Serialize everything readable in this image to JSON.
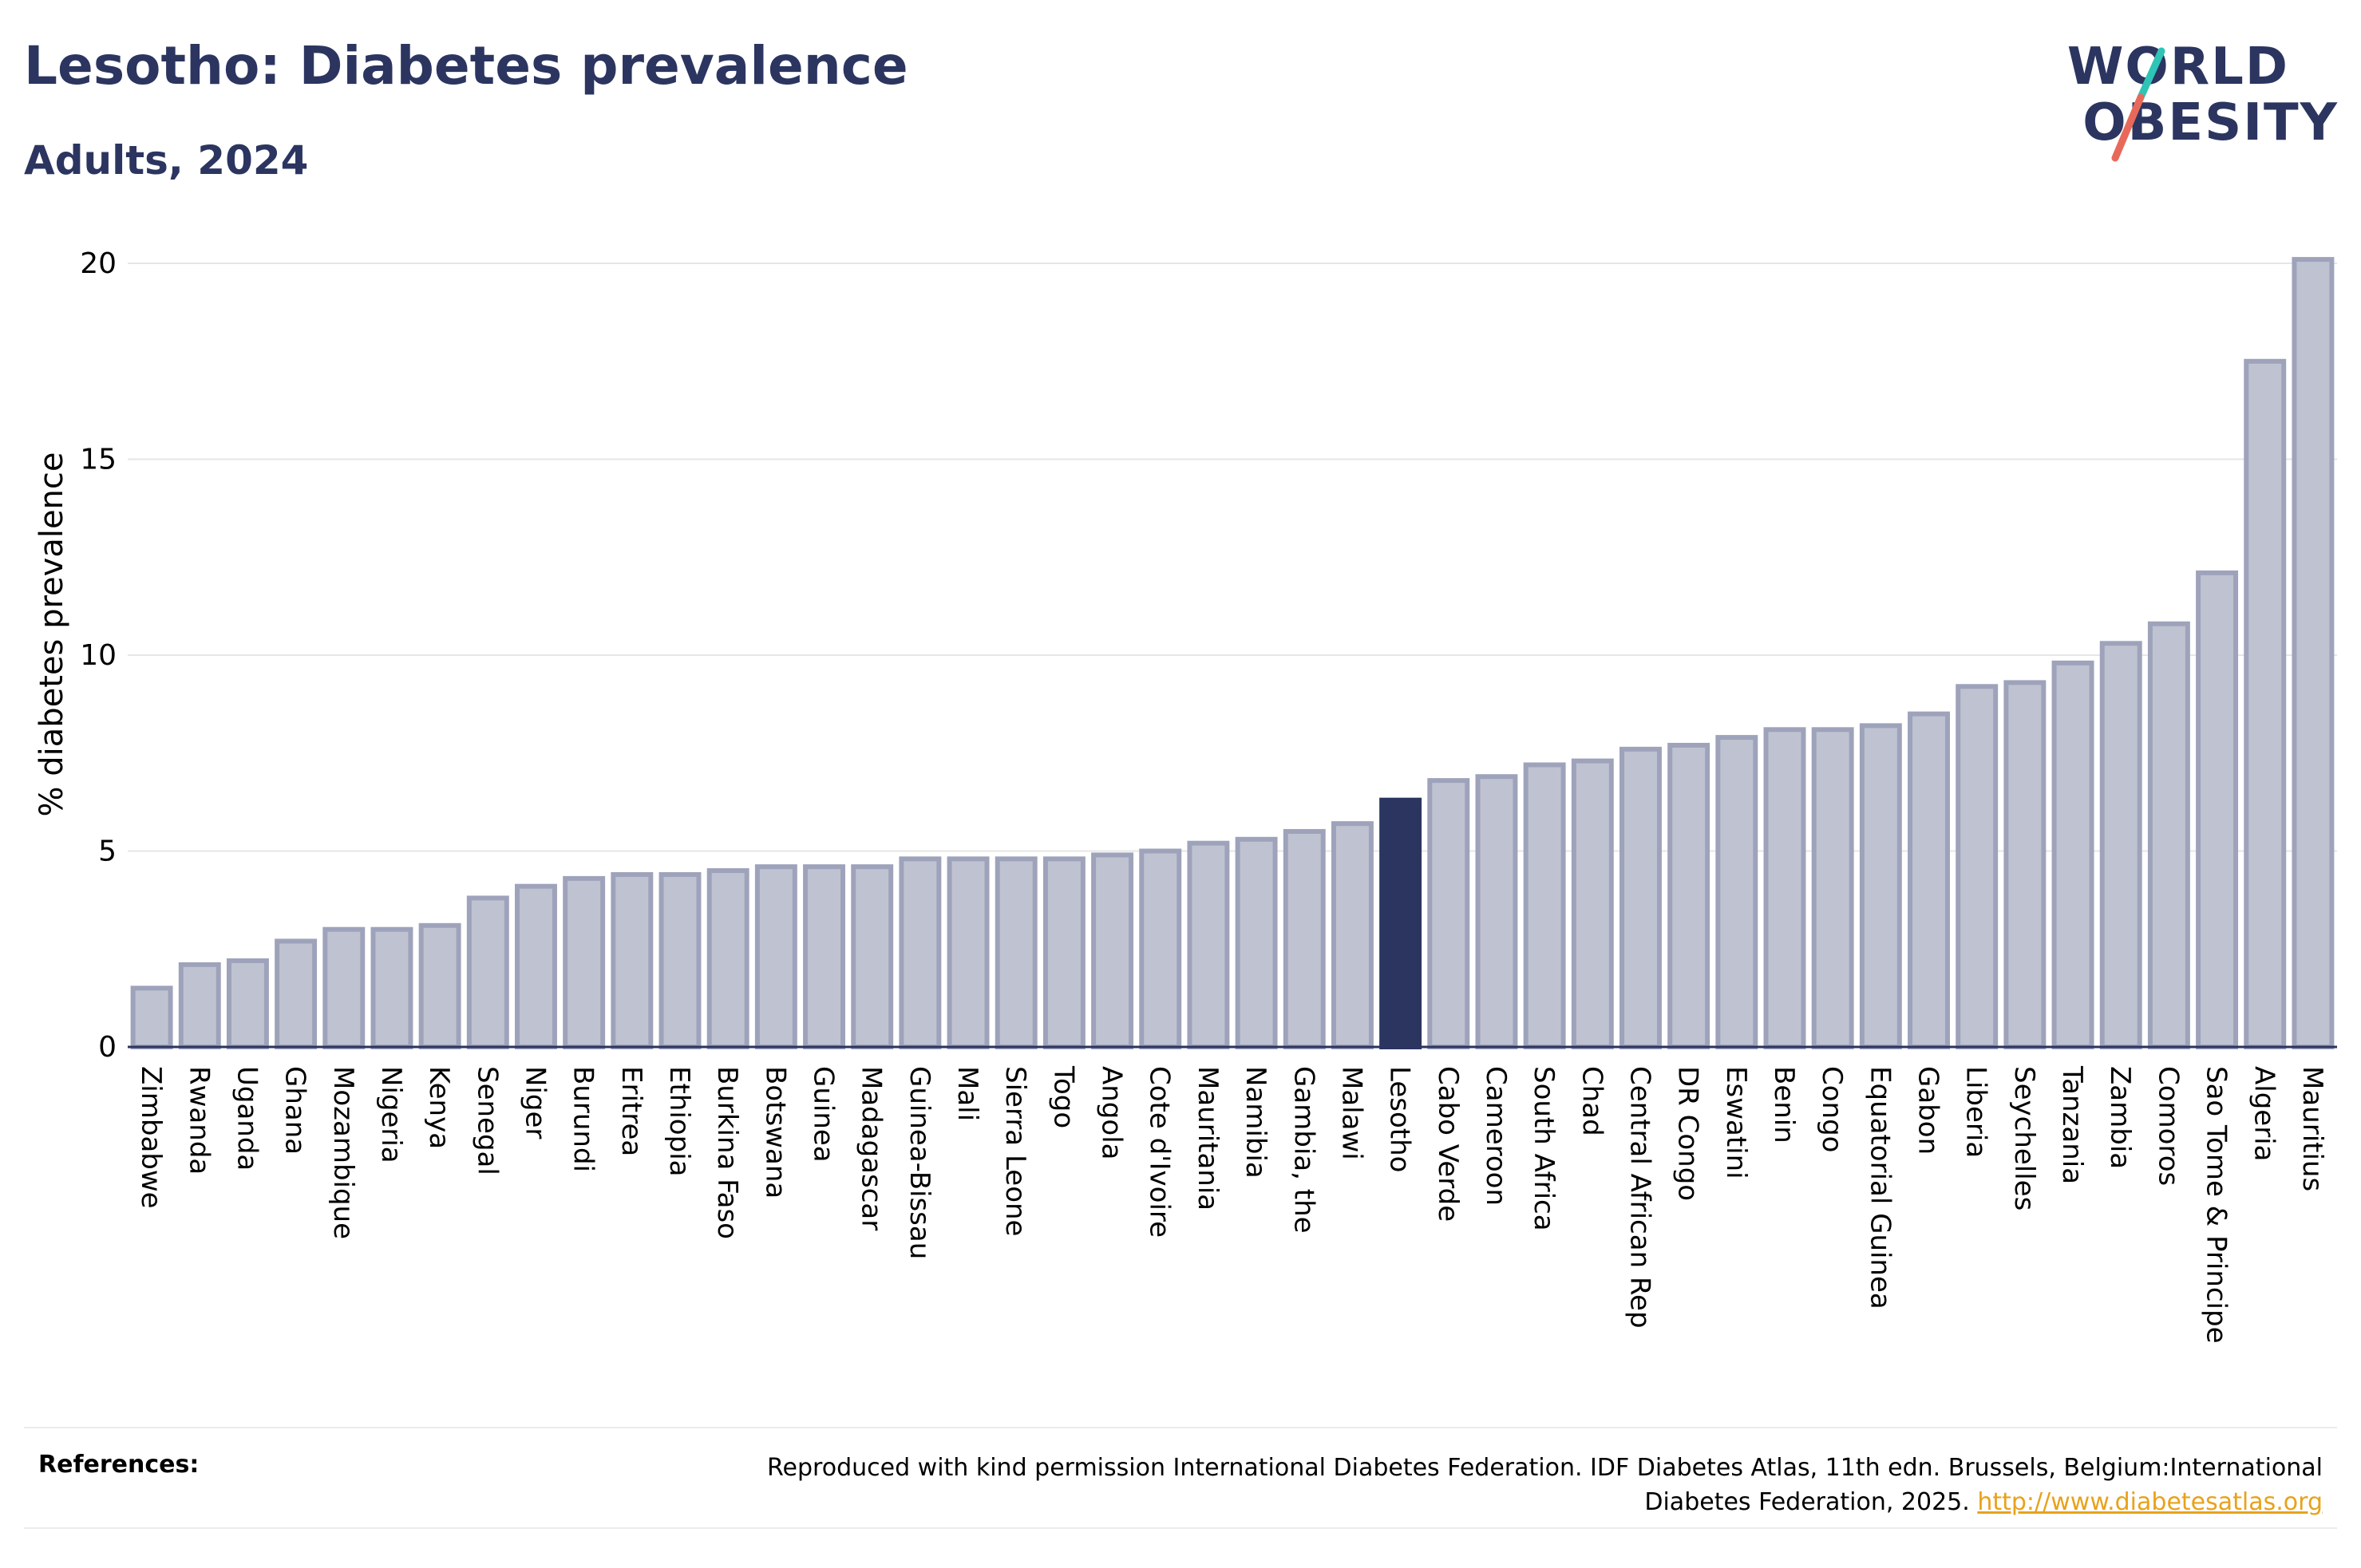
{
  "header": {
    "title": "Lesotho: Diabetes prevalence",
    "subtitle": "Adults, 2024"
  },
  "logo": {
    "line1": "WORLD",
    "line2": "OBESITY",
    "colors": {
      "text": "#2b3560",
      "slash_top": "#2ec4b6",
      "slash_bottom": "#e8695a"
    }
  },
  "colors": {
    "bar_fill": "#bfc3d1",
    "bar_stroke": "#9ea3bb",
    "highlight_fill": "#2b3560",
    "grid": "#e6e6e6",
    "axis": "#2b3560"
  },
  "chart_data": {
    "type": "bar",
    "title": "Lesotho: Diabetes prevalence",
    "subtitle": "Adults, 2024",
    "xlabel": "",
    "ylabel": "% diabetes prevalence",
    "ylim": [
      0,
      20.5
    ],
    "yticks": [
      0,
      5,
      10,
      15,
      20
    ],
    "grid": true,
    "highlight": "Lesotho",
    "categories": [
      "Zimbabwe",
      "Rwanda",
      "Uganda",
      "Ghana",
      "Mozambique",
      "Nigeria",
      "Kenya",
      "Senegal",
      "Niger",
      "Burundi",
      "Eritrea",
      "Ethiopia",
      "Burkina Faso",
      "Botswana",
      "Guinea",
      "Madagascar",
      "Guinea-Bissau",
      "Mali",
      "Sierra Leone",
      "Togo",
      "Angola",
      "Cote d'Ivoire",
      "Mauritania",
      "Namibia",
      "Gambia, the",
      "Malawi",
      "Lesotho",
      "Cabo Verde",
      "Cameroon",
      "South Africa",
      "Chad",
      "Central African Rep",
      "DR Congo",
      "Eswatini",
      "Benin",
      "Congo",
      "Equatorial Guinea",
      "Gabon",
      "Liberia",
      "Seychelles",
      "Tanzania",
      "Zambia",
      "Comoros",
      "Sao Tome & Principe",
      "Algeria",
      "Mauritius"
    ],
    "values": [
      1.5,
      2.1,
      2.2,
      2.7,
      3.0,
      3.0,
      3.1,
      3.8,
      4.1,
      4.3,
      4.4,
      4.4,
      4.5,
      4.6,
      4.6,
      4.6,
      4.8,
      4.8,
      4.8,
      4.8,
      4.9,
      5.0,
      5.2,
      5.3,
      5.5,
      5.7,
      6.3,
      6.8,
      6.9,
      7.2,
      7.3,
      7.6,
      7.7,
      7.9,
      8.1,
      8.1,
      8.2,
      8.5,
      9.2,
      9.3,
      9.8,
      10.3,
      10.8,
      12.1,
      17.5,
      20.1
    ]
  },
  "references": {
    "label": "References:",
    "text": "Reproduced with kind permission International Diabetes Federation. IDF Diabetes Atlas, 11th edn. Brussels, Belgium:International Diabetes Federation, 2025.",
    "link": "http://www.diabetesatlas.org"
  }
}
